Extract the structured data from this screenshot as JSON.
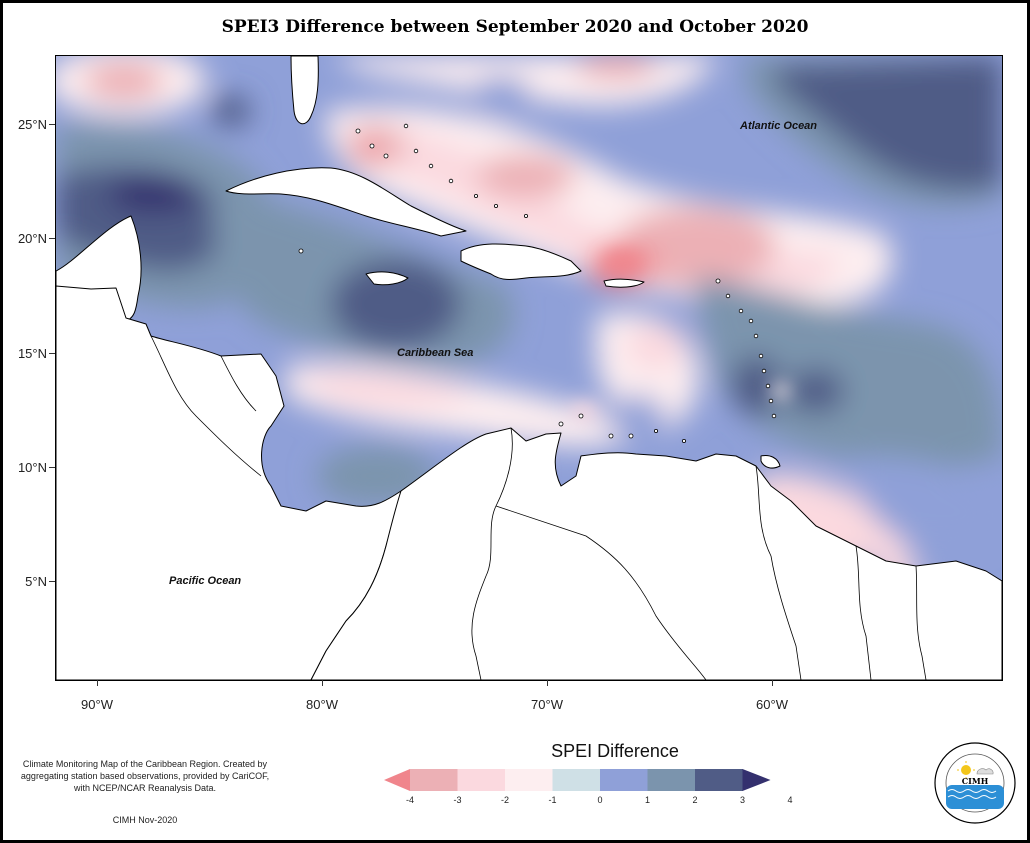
{
  "title": "SPEI3 Difference between September 2020 and October 2020",
  "map": {
    "region": "Caribbean",
    "lat_range": [
      1,
      28.3
    ],
    "lon_range": [
      -91.8,
      -49.8
    ],
    "y_ticks": [
      "25°N",
      "20°N",
      "15°N",
      "10°N",
      "5°N"
    ],
    "x_ticks": [
      "90°W",
      "80°W",
      "70°W",
      "60°W"
    ],
    "labels": {
      "atlantic": "Atlantic Ocean",
      "caribbean": "Caribbean Sea",
      "pacific": "Pacific Ocean"
    }
  },
  "legend": {
    "title": "SPEI Difference",
    "ticks": [
      "-4",
      "-3",
      "-2",
      "-1",
      "0",
      "1",
      "2",
      "3",
      "4"
    ],
    "colors": [
      "#f0858c",
      "#ecb0b5",
      "#fbd9df",
      "#fdeef0",
      "#cfe0e6",
      "#8fa0d8",
      "#7b94ad",
      "#505c86",
      "#34306e"
    ]
  },
  "notes": {
    "description": "Climate Monitoring Map of the Caribbean Region. Created by aggregating station based observations, provided by CariCOF, with NCEP/NCAR Reanalysis Data.",
    "credit": "CIMH Nov-2020"
  },
  "logo": {
    "text": "CIMH",
    "ring_text": "Caribbean Institute for Meteorology and Hydrology"
  }
}
